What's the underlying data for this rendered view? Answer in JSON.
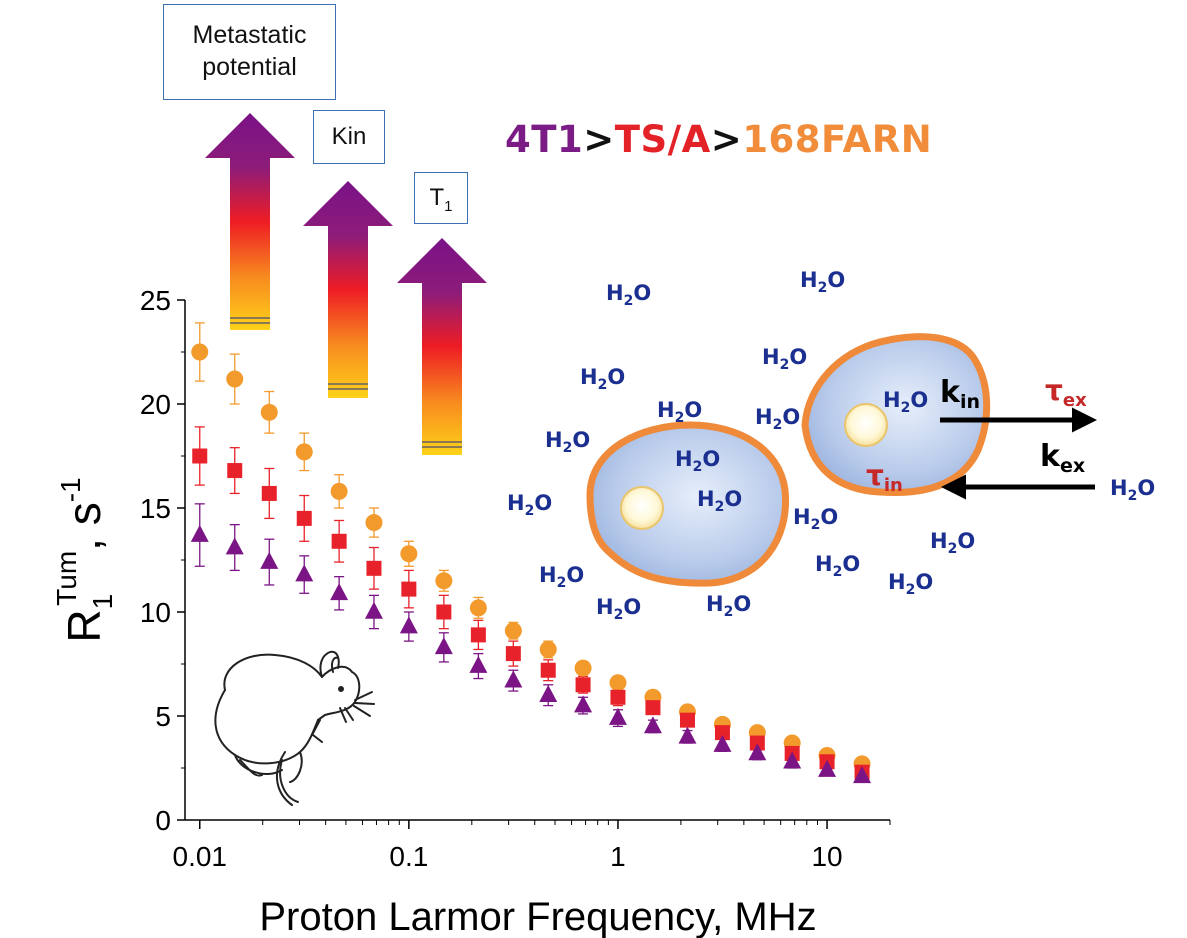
{
  "chart_data": {
    "type": "scatter",
    "xlabel": "Proton Larmor Frequency, MHz",
    "ylabel_main": "R",
    "ylabel_sub": "1",
    "ylabel_sup": "Tum",
    "ylabel_unit": ", s",
    "ylabel_unit_sup": "-1",
    "xscale": "log",
    "xlim": [
      0.0085,
      20
    ],
    "ylim": [
      0,
      25
    ],
    "yticks": [
      "0",
      "5",
      "10",
      "15",
      "20",
      "25"
    ],
    "xticks": [
      "0.01",
      "0.1",
      "1",
      "10"
    ],
    "x": [
      0.01,
      0.0147,
      0.0215,
      0.0316,
      0.0464,
      0.0681,
      0.1,
      0.147,
      0.215,
      0.316,
      0.464,
      0.681,
      1.0,
      1.47,
      2.15,
      3.16,
      4.64,
      6.81,
      10.0,
      14.7
    ],
    "series": [
      {
        "marker": "circle",
        "color": "#f39a2d",
        "values": [
          22.5,
          21.2,
          19.6,
          17.7,
          15.8,
          14.3,
          12.8,
          11.5,
          10.2,
          9.1,
          8.2,
          7.3,
          6.6,
          5.9,
          5.2,
          4.6,
          4.2,
          3.7,
          3.1,
          2.7
        ],
        "errors": [
          1.4,
          1.2,
          1.0,
          0.9,
          0.8,
          0.7,
          0.6,
          0.5,
          0.5,
          0.4,
          0.4,
          0.3,
          0.3,
          0.3,
          0.3,
          0.2,
          0.2,
          0.2,
          0.2,
          0.2
        ]
      },
      {
        "marker": "square",
        "color": "#e8222a",
        "values": [
          17.5,
          16.8,
          15.7,
          14.5,
          13.4,
          12.1,
          11.1,
          10.0,
          8.9,
          8.0,
          7.2,
          6.5,
          5.9,
          5.4,
          4.8,
          4.2,
          3.7,
          3.2,
          2.8,
          2.3
        ],
        "errors": [
          1.4,
          1.1,
          1.2,
          1.1,
          1.0,
          1.0,
          0.9,
          0.8,
          0.7,
          0.6,
          0.5,
          0.4,
          0.4,
          0.3,
          0.3,
          0.3,
          0.2,
          0.2,
          0.2,
          0.2
        ]
      },
      {
        "marker": "triangle",
        "color": "#7b1585",
        "values": [
          13.7,
          13.1,
          12.4,
          11.8,
          10.9,
          10.0,
          9.3,
          8.3,
          7.4,
          6.7,
          6.0,
          5.5,
          4.9,
          4.5,
          4.0,
          3.6,
          3.2,
          2.8,
          2.4,
          2.1
        ],
        "errors": [
          1.5,
          1.1,
          1.1,
          0.9,
          0.8,
          0.8,
          0.7,
          0.7,
          0.6,
          0.5,
          0.5,
          0.4,
          0.4,
          0.3,
          0.3,
          0.3,
          0.3,
          0.3,
          0.2,
          0.2
        ]
      }
    ]
  },
  "boxes": {
    "metastatic_line1": "Metastatic",
    "metastatic_line2": "potential",
    "kin": "Kin",
    "t1_main": "T",
    "t1_sub": "1"
  },
  "ordering": {
    "a": "4T1",
    "sep1": ">",
    "b": "TS/A",
    "sep2": ">",
    "c": "168FARN",
    "color_a": "#7a1b86",
    "color_sep": "#111111",
    "color_b": "#e32227",
    "color_c": "#f08c3a"
  },
  "diagram": {
    "water_main": "H",
    "water_sub": "2",
    "water_tail": "O",
    "k_in_main": "k",
    "k_in_sub": "in",
    "k_ex_main": "k",
    "k_ex_sub": "ex",
    "tau_ex_main": "τ",
    "tau_ex_sub": "ex",
    "tau_in_main": "τ",
    "tau_in_sub": "in",
    "water_color": "#1a2f8f",
    "tau_color": "#c62828",
    "cell_membrane_color": "#ee8a3a"
  }
}
